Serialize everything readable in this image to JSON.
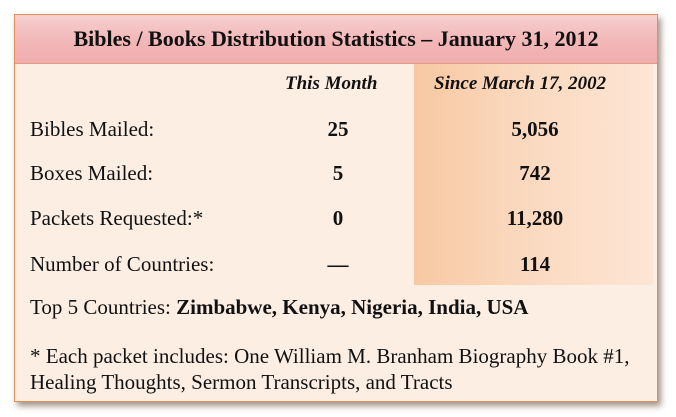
{
  "title": "Bibles / Books Distribution Statistics – January 31, 2012",
  "columns": {
    "this_month": "This Month",
    "since": "Since March 17, 2002"
  },
  "rows": [
    {
      "label": "Bibles Mailed:",
      "this_month": "25",
      "since": "5,056"
    },
    {
      "label": "Boxes Mailed:",
      "this_month": "5",
      "since": "742"
    },
    {
      "label": "Packets Requested:*",
      "this_month": "0",
      "since": "11,280"
    },
    {
      "label": "Number of Countries:",
      "this_month": "—",
      "since": "114"
    }
  ],
  "top_countries": {
    "label": "Top 5 Countries:",
    "value": "Zimbabwe, Kenya, Nigeria, India, USA"
  },
  "footnote": "* Each packet includes: One William M. Branham Biography Book #1, Healing Thoughts, Sermon Transcripts,  and Tracts",
  "colors": {
    "card_background": "#fdeee4",
    "title_bar": "#f2b7b8",
    "since_column": "#f8c8a2",
    "border": "#e0905a"
  }
}
